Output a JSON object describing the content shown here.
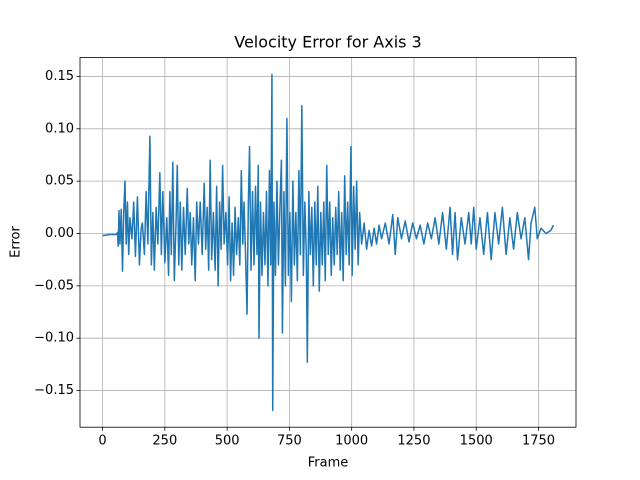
{
  "chart_data": {
    "type": "line",
    "title": "Velocity Error for Axis 3",
    "x_label": "Frame",
    "y_label": "Error",
    "color": "#1f77b4",
    "grid": true,
    "xlim": [
      -90.5,
      1900.5
    ],
    "ylim": [
      -0.185,
      0.168
    ],
    "xticks": [
      0,
      250,
      500,
      750,
      1000,
      1250,
      1500,
      1750
    ],
    "yticks": [
      {
        "value": -0.15,
        "label": "−0.15"
      },
      {
        "value": -0.1,
        "label": "−0.10"
      },
      {
        "value": -0.05,
        "label": "−0.05"
      },
      {
        "value": 0,
        "label": "0.00"
      },
      {
        "value": 0.05,
        "label": "0.05"
      },
      {
        "value": 0.1,
        "label": "0.10"
      },
      {
        "value": 0.15,
        "label": "0.15"
      }
    ],
    "x": [
      0,
      30,
      55,
      60,
      63,
      66,
      70,
      75,
      80,
      85,
      90,
      95,
      100,
      105,
      110,
      118,
      125,
      132,
      140,
      148,
      155,
      160,
      168,
      175,
      182,
      190,
      196,
      202,
      208,
      215,
      222,
      230,
      236,
      242,
      250,
      258,
      265,
      270,
      276,
      282,
      288,
      295,
      300,
      306,
      312,
      318,
      325,
      332,
      340,
      346,
      352,
      358,
      365,
      372,
      378,
      385,
      392,
      400,
      408,
      414,
      420,
      426,
      432,
      438,
      445,
      452,
      458,
      464,
      470,
      476,
      482,
      488,
      495,
      502,
      508,
      514,
      520,
      526,
      532,
      538,
      545,
      551,
      557,
      563,
      568,
      574,
      580,
      585,
      590,
      596,
      602,
      608,
      614,
      620,
      625,
      628,
      634,
      640,
      646,
      652,
      658,
      664,
      670,
      675,
      680,
      683,
      688,
      694,
      700,
      706,
      712,
      718,
      722,
      728,
      734,
      740,
      746,
      752,
      758,
      764,
      770,
      776,
      782,
      788,
      794,
      800,
      806,
      812,
      818,
      822,
      828,
      834,
      840,
      846,
      852,
      858,
      864,
      870,
      876,
      882,
      888,
      894,
      900,
      906,
      912,
      918,
      924,
      930,
      936,
      942,
      948,
      954,
      960,
      966,
      972,
      978,
      984,
      990,
      997,
      1002,
      1008,
      1014,
      1020,
      1026,
      1032,
      1040,
      1050,
      1060,
      1070,
      1080,
      1090,
      1100,
      1110,
      1120,
      1135,
      1150,
      1165,
      1175,
      1185,
      1200,
      1215,
      1230,
      1245,
      1260,
      1275,
      1290,
      1305,
      1320,
      1335,
      1350,
      1365,
      1380,
      1395,
      1405,
      1415,
      1425,
      1440,
      1455,
      1470,
      1480,
      1490,
      1500,
      1515,
      1530,
      1545,
      1560,
      1575,
      1590,
      1605,
      1620,
      1635,
      1650,
      1665,
      1680,
      1695,
      1710,
      1720,
      1735,
      1745,
      1760,
      1780,
      1800,
      1810
    ],
    "values": [
      -0.002,
      -0.001,
      -0.001,
      0.001,
      -0.012,
      0.022,
      -0.01,
      0.023,
      -0.036,
      0.02,
      0.05,
      -0.01,
      0.03,
      -0.02,
      0.015,
      -0.005,
      0.03,
      -0.022,
      0.035,
      -0.03,
      0.005,
      0.01,
      -0.02,
      0.04,
      -0.01,
      0.093,
      -0.03,
      0.02,
      -0.035,
      0.025,
      -0.01,
      0.058,
      -0.02,
      0.04,
      -0.028,
      0.015,
      -0.04,
      0.04,
      -0.02,
      0.068,
      -0.045,
      0.01,
      0.065,
      -0.03,
      0.03,
      -0.035,
      0.025,
      -0.02,
      0.043,
      -0.01,
      0.02,
      -0.03,
      0.015,
      -0.045,
      0.03,
      -0.01,
      0.03,
      -0.02,
      0.048,
      -0.015,
      0.025,
      -0.035,
      0.07,
      -0.025,
      0.02,
      -0.035,
      0.045,
      -0.05,
      0.03,
      -0.015,
      0.065,
      -0.01,
      0.02,
      -0.03,
      0.035,
      -0.045,
      0.01,
      -0.04,
      0.025,
      -0.02,
      0.015,
      -0.03,
      0.06,
      -0.01,
      0.03,
      -0.02,
      -0.077,
      0.025,
      0.083,
      -0.035,
      0.04,
      -0.03,
      0.045,
      -0.02,
      0.065,
      -0.1,
      0.03,
      -0.04,
      0.02,
      -0.03,
      0.04,
      -0.05,
      0.06,
      -0.03,
      0.152,
      -0.169,
      0.03,
      -0.04,
      0.05,
      -0.03,
      0.025,
      0.07,
      -0.095,
      0.04,
      -0.05,
      0.11,
      -0.04,
      0.02,
      -0.065,
      0.05,
      -0.03,
      0.02,
      -0.045,
      0.06,
      -0.02,
      0.122,
      -0.04,
      0.03,
      -0.02,
      -0.123,
      0.04,
      -0.02,
      0.025,
      -0.05,
      0.03,
      -0.03,
      0.045,
      -0.055,
      0.02,
      -0.03,
      0.03,
      -0.045,
      0.065,
      -0.02,
      0.03,
      -0.04,
      0.015,
      -0.03,
      0.025,
      -0.02,
      0.04,
      -0.035,
      0.02,
      -0.045,
      0.055,
      -0.02,
      0.03,
      -0.03,
      0.083,
      -0.04,
      0.045,
      -0.015,
      0.05,
      -0.03,
      0.02,
      -0.01,
      0.01,
      -0.015,
      0.003,
      -0.012,
      0.005,
      -0.01,
      0.008,
      -0.005,
      0.01,
      -0.01,
      0.018,
      -0.02,
      0.015,
      -0.005,
      0.012,
      -0.008,
      0.01,
      -0.005,
      0.008,
      -0.01,
      0.01,
      -0.005,
      0.015,
      -0.01,
      0.02,
      -0.015,
      0.025,
      -0.02,
      0.02,
      -0.025,
      0.015,
      -0.01,
      0.02,
      -0.01,
      0.025,
      -0.015,
      0.015,
      -0.02,
      0.02,
      -0.025,
      0.02,
      -0.01,
      0.025,
      -0.02,
      0.015,
      -0.015,
      0.02,
      -0.005,
      0.015,
      -0.025,
      0.01,
      0.025,
      -0.005,
      0.005,
      0,
      0.003,
      0.008
    ]
  }
}
